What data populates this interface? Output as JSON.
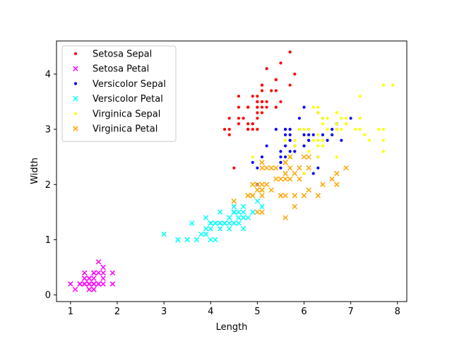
{
  "chart_data": {
    "type": "scatter",
    "title": "",
    "xlabel": "Length",
    "ylabel": "Width",
    "xlim": [
      0.7,
      8.2
    ],
    "ylim": [
      -0.12,
      4.6
    ],
    "xticks": [
      1,
      2,
      3,
      4,
      5,
      6,
      7,
      8
    ],
    "yticks": [
      0,
      1,
      2,
      3,
      4
    ],
    "grid": false,
    "legend_position": "top-left",
    "series": [
      {
        "name": "Setosa Sepal",
        "color": "#ff0000",
        "marker": "dot",
        "points": [
          [
            5.1,
            3.5
          ],
          [
            4.9,
            3.0
          ],
          [
            4.7,
            3.2
          ],
          [
            4.6,
            3.1
          ],
          [
            5.0,
            3.6
          ],
          [
            5.4,
            3.9
          ],
          [
            4.6,
            3.4
          ],
          [
            5.0,
            3.4
          ],
          [
            4.4,
            2.9
          ],
          [
            4.9,
            3.1
          ],
          [
            5.4,
            3.7
          ],
          [
            4.8,
            3.4
          ],
          [
            4.8,
            3.0
          ],
          [
            4.3,
            3.0
          ],
          [
            5.8,
            4.0
          ],
          [
            5.7,
            4.4
          ],
          [
            5.4,
            3.9
          ],
          [
            5.1,
            3.5
          ],
          [
            5.7,
            3.8
          ],
          [
            5.1,
            3.8
          ],
          [
            5.4,
            3.4
          ],
          [
            5.1,
            3.7
          ],
          [
            4.6,
            3.6
          ],
          [
            5.1,
            3.3
          ],
          [
            4.8,
            3.4
          ],
          [
            5.0,
            3.0
          ],
          [
            5.0,
            3.4
          ],
          [
            5.2,
            3.5
          ],
          [
            5.2,
            3.4
          ],
          [
            4.7,
            3.2
          ],
          [
            4.8,
            3.1
          ],
          [
            5.4,
            3.4
          ],
          [
            5.2,
            4.1
          ],
          [
            5.5,
            4.2
          ],
          [
            4.9,
            3.1
          ],
          [
            5.0,
            3.2
          ],
          [
            5.5,
            3.5
          ],
          [
            4.9,
            3.6
          ],
          [
            4.4,
            3.0
          ],
          [
            5.1,
            3.4
          ],
          [
            5.0,
            3.5
          ],
          [
            4.5,
            2.3
          ],
          [
            4.4,
            3.2
          ],
          [
            5.0,
            3.5
          ],
          [
            5.1,
            3.8
          ],
          [
            4.8,
            3.0
          ],
          [
            5.1,
            3.8
          ],
          [
            4.6,
            3.2
          ],
          [
            5.3,
            3.7
          ],
          [
            5.0,
            3.3
          ]
        ]
      },
      {
        "name": "Setosa Petal",
        "color": "#ff00ff",
        "marker": "x",
        "points": [
          [
            1.4,
            0.2
          ],
          [
            1.4,
            0.2
          ],
          [
            1.3,
            0.2
          ],
          [
            1.5,
            0.2
          ],
          [
            1.4,
            0.2
          ],
          [
            1.7,
            0.4
          ],
          [
            1.4,
            0.3
          ],
          [
            1.5,
            0.2
          ],
          [
            1.4,
            0.2
          ],
          [
            1.5,
            0.1
          ],
          [
            1.5,
            0.2
          ],
          [
            1.6,
            0.2
          ],
          [
            1.4,
            0.1
          ],
          [
            1.1,
            0.1
          ],
          [
            1.2,
            0.2
          ],
          [
            1.5,
            0.4
          ],
          [
            1.3,
            0.4
          ],
          [
            1.4,
            0.3
          ],
          [
            1.7,
            0.3
          ],
          [
            1.5,
            0.3
          ],
          [
            1.7,
            0.2
          ],
          [
            1.5,
            0.4
          ],
          [
            1.0,
            0.2
          ],
          [
            1.7,
            0.5
          ],
          [
            1.9,
            0.2
          ],
          [
            1.6,
            0.2
          ],
          [
            1.6,
            0.4
          ],
          [
            1.5,
            0.2
          ],
          [
            1.4,
            0.2
          ],
          [
            1.6,
            0.2
          ],
          [
            1.6,
            0.2
          ],
          [
            1.5,
            0.4
          ],
          [
            1.5,
            0.1
          ],
          [
            1.4,
            0.2
          ],
          [
            1.5,
            0.2
          ],
          [
            1.2,
            0.2
          ],
          [
            1.3,
            0.2
          ],
          [
            1.4,
            0.1
          ],
          [
            1.3,
            0.2
          ],
          [
            1.5,
            0.2
          ],
          [
            1.3,
            0.3
          ],
          [
            1.3,
            0.3
          ],
          [
            1.3,
            0.2
          ],
          [
            1.6,
            0.6
          ],
          [
            1.9,
            0.4
          ],
          [
            1.4,
            0.3
          ],
          [
            1.6,
            0.2
          ],
          [
            1.4,
            0.2
          ],
          [
            1.5,
            0.2
          ],
          [
            1.4,
            0.2
          ]
        ]
      },
      {
        "name": "Versicolor Sepal",
        "color": "#0000ff",
        "marker": "dot",
        "points": [
          [
            7.0,
            3.2
          ],
          [
            6.4,
            3.2
          ],
          [
            6.9,
            3.1
          ],
          [
            5.5,
            2.3
          ],
          [
            6.5,
            2.8
          ],
          [
            5.7,
            2.8
          ],
          [
            6.3,
            3.3
          ],
          [
            4.9,
            2.4
          ],
          [
            6.6,
            2.9
          ],
          [
            5.2,
            2.7
          ],
          [
            5.0,
            2.0
          ],
          [
            5.9,
            3.0
          ],
          [
            6.0,
            2.2
          ],
          [
            6.1,
            2.9
          ],
          [
            5.6,
            2.9
          ],
          [
            6.7,
            3.1
          ],
          [
            5.6,
            3.0
          ],
          [
            5.8,
            2.7
          ],
          [
            6.2,
            2.2
          ],
          [
            5.6,
            2.5
          ],
          [
            5.9,
            3.2
          ],
          [
            6.1,
            2.8
          ],
          [
            6.3,
            2.5
          ],
          [
            6.1,
            2.8
          ],
          [
            6.4,
            2.9
          ],
          [
            6.6,
            3.0
          ],
          [
            6.8,
            2.8
          ],
          [
            6.7,
            3.0
          ],
          [
            6.0,
            2.9
          ],
          [
            5.7,
            2.6
          ],
          [
            5.5,
            2.4
          ],
          [
            5.5,
            2.4
          ],
          [
            5.8,
            2.7
          ],
          [
            6.0,
            2.7
          ],
          [
            5.4,
            3.0
          ],
          [
            6.0,
            3.4
          ],
          [
            6.7,
            3.1
          ],
          [
            6.3,
            2.3
          ],
          [
            5.6,
            3.0
          ],
          [
            5.5,
            2.5
          ],
          [
            5.5,
            2.6
          ],
          [
            6.1,
            3.0
          ],
          [
            5.8,
            2.6
          ],
          [
            5.0,
            2.3
          ],
          [
            5.6,
            2.7
          ],
          [
            5.7,
            3.0
          ],
          [
            5.7,
            2.9
          ],
          [
            6.2,
            2.9
          ],
          [
            5.1,
            2.5
          ],
          [
            5.7,
            2.8
          ]
        ]
      },
      {
        "name": "Versicolor Petal",
        "color": "#00ffff",
        "marker": "x",
        "points": [
          [
            4.7,
            1.4
          ],
          [
            4.5,
            1.5
          ],
          [
            4.9,
            1.5
          ],
          [
            4.0,
            1.3
          ],
          [
            4.6,
            1.5
          ],
          [
            4.5,
            1.3
          ],
          [
            4.7,
            1.6
          ],
          [
            3.3,
            1.0
          ],
          [
            4.6,
            1.3
          ],
          [
            3.9,
            1.4
          ],
          [
            3.5,
            1.0
          ],
          [
            4.2,
            1.5
          ],
          [
            4.0,
            1.0
          ],
          [
            4.7,
            1.4
          ],
          [
            3.6,
            1.3
          ],
          [
            4.4,
            1.4
          ],
          [
            4.5,
            1.5
          ],
          [
            4.1,
            1.0
          ],
          [
            4.5,
            1.5
          ],
          [
            3.9,
            1.1
          ],
          [
            4.8,
            1.8
          ],
          [
            4.0,
            1.3
          ],
          [
            4.9,
            1.5
          ],
          [
            4.7,
            1.2
          ],
          [
            4.3,
            1.3
          ],
          [
            4.4,
            1.4
          ],
          [
            4.8,
            1.4
          ],
          [
            5.0,
            1.7
          ],
          [
            4.5,
            1.5
          ],
          [
            3.5,
            1.0
          ],
          [
            3.8,
            1.1
          ],
          [
            3.7,
            1.0
          ],
          [
            3.9,
            1.2
          ],
          [
            5.1,
            1.6
          ],
          [
            4.5,
            1.5
          ],
          [
            4.5,
            1.6
          ],
          [
            4.7,
            1.5
          ],
          [
            4.4,
            1.3
          ],
          [
            4.1,
            1.3
          ],
          [
            4.0,
            1.3
          ],
          [
            4.4,
            1.2
          ],
          [
            4.6,
            1.4
          ],
          [
            4.0,
            1.2
          ],
          [
            3.3,
            1.0
          ],
          [
            4.2,
            1.3
          ],
          [
            4.2,
            1.2
          ],
          [
            4.2,
            1.3
          ],
          [
            4.3,
            1.3
          ],
          [
            3.0,
            1.1
          ],
          [
            4.1,
            1.3
          ]
        ]
      },
      {
        "name": "Virginica Sepal",
        "color": "#ffff00",
        "marker": "dot",
        "points": [
          [
            6.3,
            3.3
          ],
          [
            5.8,
            2.7
          ],
          [
            7.1,
            3.0
          ],
          [
            6.3,
            2.9
          ],
          [
            6.5,
            3.0
          ],
          [
            7.6,
            3.0
          ],
          [
            4.9,
            2.5
          ],
          [
            7.3,
            2.9
          ],
          [
            6.7,
            2.5
          ],
          [
            7.2,
            3.6
          ],
          [
            6.5,
            3.2
          ],
          [
            6.4,
            2.7
          ],
          [
            6.8,
            3.0
          ],
          [
            5.7,
            2.5
          ],
          [
            5.8,
            2.8
          ],
          [
            6.4,
            3.2
          ],
          [
            6.5,
            3.0
          ],
          [
            7.7,
            3.8
          ],
          [
            7.7,
            2.6
          ],
          [
            6.0,
            2.2
          ],
          [
            6.9,
            3.2
          ],
          [
            5.6,
            2.8
          ],
          [
            7.7,
            2.8
          ],
          [
            6.3,
            2.7
          ],
          [
            6.7,
            3.3
          ],
          [
            7.2,
            3.2
          ],
          [
            6.2,
            2.8
          ],
          [
            6.1,
            3.0
          ],
          [
            6.4,
            2.8
          ],
          [
            7.2,
            3.0
          ],
          [
            7.4,
            2.8
          ],
          [
            7.9,
            3.8
          ],
          [
            6.4,
            2.8
          ],
          [
            6.3,
            2.8
          ],
          [
            6.1,
            2.6
          ],
          [
            7.7,
            3.0
          ],
          [
            6.3,
            3.4
          ],
          [
            6.4,
            3.1
          ],
          [
            6.0,
            3.0
          ],
          [
            6.9,
            3.1
          ],
          [
            6.7,
            3.1
          ],
          [
            6.9,
            3.1
          ],
          [
            5.8,
            2.7
          ],
          [
            6.8,
            3.2
          ],
          [
            6.7,
            3.3
          ],
          [
            6.7,
            3.0
          ],
          [
            6.3,
            2.5
          ],
          [
            6.5,
            3.0
          ],
          [
            6.2,
            3.4
          ],
          [
            5.9,
            3.0
          ]
        ]
      },
      {
        "name": "Virginica Petal",
        "color": "#ffa500",
        "marker": "x",
        "points": [
          [
            6.0,
            2.5
          ],
          [
            5.1,
            1.9
          ],
          [
            5.9,
            2.1
          ],
          [
            5.6,
            1.8
          ],
          [
            5.8,
            2.2
          ],
          [
            6.6,
            2.1
          ],
          [
            4.5,
            1.7
          ],
          [
            6.3,
            1.8
          ],
          [
            5.8,
            1.8
          ],
          [
            6.1,
            2.5
          ],
          [
            5.1,
            2.0
          ],
          [
            5.3,
            1.9
          ],
          [
            5.5,
            2.1
          ],
          [
            5.0,
            2.0
          ],
          [
            5.1,
            2.4
          ],
          [
            5.3,
            2.3
          ],
          [
            5.5,
            1.8
          ],
          [
            6.7,
            2.2
          ],
          [
            6.9,
            2.3
          ],
          [
            5.0,
            1.5
          ],
          [
            5.7,
            2.3
          ],
          [
            4.9,
            2.0
          ],
          [
            6.7,
            2.0
          ],
          [
            4.9,
            1.8
          ],
          [
            5.7,
            2.1
          ],
          [
            6.0,
            1.8
          ],
          [
            4.8,
            1.8
          ],
          [
            4.9,
            1.8
          ],
          [
            5.6,
            2.1
          ],
          [
            5.8,
            1.6
          ],
          [
            6.1,
            1.9
          ],
          [
            6.4,
            2.0
          ],
          [
            5.6,
            2.2
          ],
          [
            5.1,
            1.5
          ],
          [
            5.6,
            1.4
          ],
          [
            6.1,
            2.3
          ],
          [
            5.6,
            2.4
          ],
          [
            5.5,
            1.8
          ],
          [
            4.8,
            1.8
          ],
          [
            5.4,
            2.1
          ],
          [
            5.6,
            2.4
          ],
          [
            5.1,
            2.3
          ],
          [
            5.1,
            1.9
          ],
          [
            5.9,
            2.3
          ],
          [
            5.7,
            2.5
          ],
          [
            5.2,
            2.3
          ],
          [
            5.0,
            1.9
          ],
          [
            5.2,
            2.0
          ],
          [
            5.4,
            2.3
          ],
          [
            5.1,
            1.8
          ]
        ]
      }
    ]
  }
}
